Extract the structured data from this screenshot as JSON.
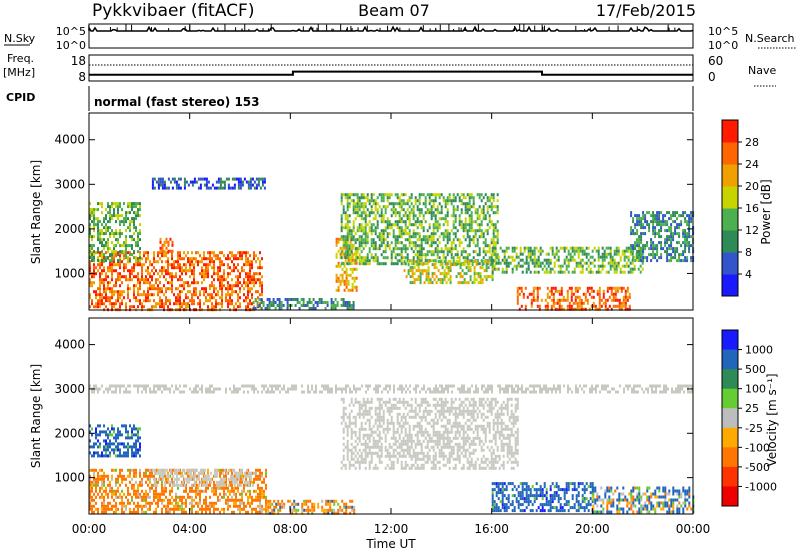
{
  "header": {
    "station": "Pykkvibaer (fitACF)",
    "beam": "Beam 07",
    "date": "17/Feb/2015"
  },
  "nsky_panel": {
    "left_label": "N.Sky",
    "right_label": "N.Search",
    "left_ticks": [
      "10^5",
      "10^0"
    ],
    "right_ticks": [
      "10^5",
      "10^0"
    ]
  },
  "freq_panel": {
    "left_label_1": "Freq.",
    "left_label_2": "[MHz]",
    "right_label": "Nave",
    "left_ticks": [
      "18",
      "8"
    ],
    "right_ticks": [
      "60",
      "0"
    ],
    "freq_steps": [
      {
        "t": 0.0,
        "f": 10.4
      },
      {
        "t": 8.1,
        "f": 11.6
      },
      {
        "t": 18.0,
        "f": 10.4
      },
      {
        "t": 24.0,
        "f": 10.4
      }
    ]
  },
  "cpid": {
    "label": "CPID",
    "value": "normal (fast stereo) 153"
  },
  "x_axis": {
    "label": "Time UT",
    "ticks": [
      "00:00",
      "04:00",
      "08:00",
      "12:00",
      "16:00",
      "20:00",
      "00:00"
    ]
  },
  "power_panel": {
    "ylabel": "Slant Range [km]",
    "y_ticks": [
      "1000",
      "2000",
      "3000",
      "4000"
    ],
    "colorbar_label": "Power [dB]",
    "colorbar_ticks": [
      "4",
      "8",
      "12",
      "16",
      "20",
      "24",
      "28"
    ],
    "colors": [
      "#1a1aff",
      "#3355cc",
      "#2e8b57",
      "#4caf50",
      "#c8d400",
      "#f0a000",
      "#ff6600",
      "#ff1a00"
    ]
  },
  "velocity_panel": {
    "ylabel": "Slant Range [km]",
    "y_ticks": [
      "1000",
      "2000",
      "3000",
      "4000"
    ],
    "colorbar_label": "Velocity [m s⁻¹]",
    "colorbar_ticks": [
      "1000",
      "500",
      "100",
      "25",
      "-25",
      "-100",
      "-500",
      "-1000"
    ],
    "colors": [
      "#1a1aff",
      "#2266bb",
      "#2e8b57",
      "#66cc33",
      "#bdbdbd",
      "#ffaa00",
      "#ff7700",
      "#ff3300",
      "#ee0000"
    ],
    "ground_scatter_color": "#c8c8c0"
  },
  "chart_data": [
    {
      "type": "heatmap",
      "title": "",
      "xlabel": "Time UT",
      "ylabel": "Slant Range [km]",
      "xlim": [
        0,
        24
      ],
      "ylim": [
        180,
        4600
      ],
      "colorbar": {
        "label": "Power [dB]",
        "range": [
          0,
          30
        ]
      },
      "regions": [
        {
          "t": [
            0.0,
            6.9
          ],
          "r": [
            200,
            1500
          ],
          "level": 24
        },
        {
          "t": [
            0.0,
            2.0
          ],
          "r": [
            1300,
            2600
          ],
          "level": 14
        },
        {
          "t": [
            2.8,
            3.3
          ],
          "r": [
            1500,
            1800
          ],
          "level": 26
        },
        {
          "t": [
            6.5,
            10.5
          ],
          "r": [
            200,
            450
          ],
          "level": 8
        },
        {
          "t": [
            9.8,
            10.6
          ],
          "r": [
            600,
            1800
          ],
          "level": 20
        },
        {
          "t": [
            10.0,
            16.2
          ],
          "r": [
            1200,
            2800
          ],
          "level": 14
        },
        {
          "t": [
            12.5,
            16.0
          ],
          "r": [
            800,
            1300
          ],
          "level": 18
        },
        {
          "t": [
            16.0,
            22.0
          ],
          "r": [
            1000,
            1600
          ],
          "level": 12
        },
        {
          "t": [
            17.0,
            21.5
          ],
          "r": [
            200,
            700
          ],
          "level": 27
        },
        {
          "t": [
            21.5,
            24.0
          ],
          "r": [
            1300,
            2400
          ],
          "level": 10
        },
        {
          "t": [
            2.5,
            7.0
          ],
          "r": [
            2900,
            3150
          ],
          "level": 4
        }
      ]
    },
    {
      "type": "heatmap",
      "title": "",
      "xlabel": "Time UT",
      "ylabel": "Slant Range [km]",
      "xlim": [
        0,
        24
      ],
      "ylim": [
        180,
        4600
      ],
      "colorbar": {
        "label": "Velocity [m s⁻¹]",
        "range": [
          -1000,
          1000
        ]
      },
      "regions": [
        {
          "t": [
            0.0,
            7.0
          ],
          "r": [
            250,
            1200
          ],
          "value": -200
        },
        {
          "t": [
            2.5,
            6.5
          ],
          "r": [
            800,
            1200
          ],
          "value": 0,
          "ground_scatter": true
        },
        {
          "t": [
            7.0,
            10.5
          ],
          "r": [
            200,
            500
          ],
          "value": -100
        },
        {
          "t": [
            10.0,
            17.0
          ],
          "r": [
            1200,
            2800
          ],
          "value": 0,
          "ground_scatter": true
        },
        {
          "t": [
            16.0,
            20.0
          ],
          "r": [
            250,
            900
          ],
          "value": 300
        },
        {
          "t": [
            20.0,
            24.0
          ],
          "r": [
            250,
            800
          ],
          "value": 100
        },
        {
          "t": [
            0.0,
            2.0
          ],
          "r": [
            1500,
            2200
          ],
          "value": 300
        },
        {
          "t": [
            0.0,
            24.0
          ],
          "r": [
            2900,
            3100
          ],
          "value": 0,
          "ground_scatter": true
        }
      ]
    }
  ]
}
